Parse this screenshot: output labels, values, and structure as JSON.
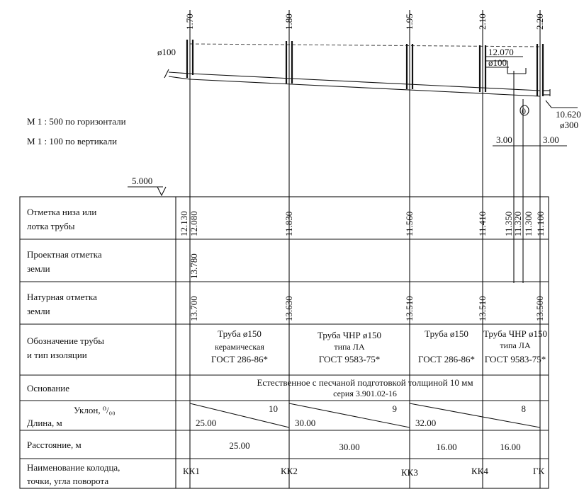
{
  "scale": {
    "horizontal": "М 1 : 500  по горизонтали",
    "vertical": "М 1 : 100  по вертикали"
  },
  "datum": "5.000",
  "top_marks": {
    "kk1": "1.70",
    "kk2": "1.80",
    "kk3": "1.95",
    "kk4": "2.10",
    "gk": "2.20"
  },
  "profile": {
    "pipe_d_left": "ø100",
    "mark_12070": "12.070",
    "pipe_d_right": "ø100",
    "mark_10620": "10.620",
    "collector_d": "ø300",
    "collector_symbol": "0",
    "dim_left": "3.00",
    "dim_right": "3.00"
  },
  "rows": {
    "bottom_mark": "Отметка низа или лотка трубы",
    "design_ground": "Проектная отметка земли",
    "natural_ground": "Натурная отметка земли",
    "pipe_type": "Обозначение трубы и тип изоляции",
    "base": "Основание",
    "slope": "Уклон, ⁰/₀₀",
    "length": "Длина, м",
    "distance": "Расстояние, м",
    "well_name": "Наименование колодца, точки, угла поворота"
  },
  "bottom_marks": {
    "kk1_a": "12.130",
    "kk1_b": "12.080",
    "kk2": "11.830",
    "kk3": "11.560",
    "kk4": "11.410",
    "gk_a": "11.350",
    "gk_b": "11.320",
    "gk_c": "11.300",
    "gk_d": "11.100"
  },
  "design_ground": {
    "kk1": "13.780"
  },
  "natural_ground": {
    "kk1": "13.700",
    "kk2": "13.630",
    "kk3": "13.510",
    "kk4": "13.510",
    "gk": "13.500"
  },
  "pipes": [
    {
      "l1": "Труба  ø150",
      "l2": "керамическая",
      "l3": "ГОСТ 286-86*"
    },
    {
      "l1": "Труба ЧНР ø150",
      "l2": "типа ЛА",
      "l3": "ГОСТ 9583-75*"
    },
    {
      "l1": "Труба  ø150",
      "l3": "ГОСТ 286-86*"
    },
    {
      "l1": "Труба ЧНР ø150",
      "l2": "типа ЛА",
      "l3": "ГОСТ 9583-75*"
    }
  ],
  "base": {
    "l1": "Естественное с песчаной подготовкой толщиной 10 мм",
    "l2": "серия 3.901.02-16"
  },
  "segments": [
    {
      "slope": "10",
      "length": "25.00"
    },
    {
      "slope": "9",
      "length": "30.00"
    },
    {
      "slope": "8",
      "length": "32.00"
    }
  ],
  "distances": [
    "25.00",
    "30.00",
    "16.00",
    "16.00"
  ],
  "wells": [
    "КК1",
    "КК2",
    "КК3",
    "КК4",
    "ГК"
  ]
}
